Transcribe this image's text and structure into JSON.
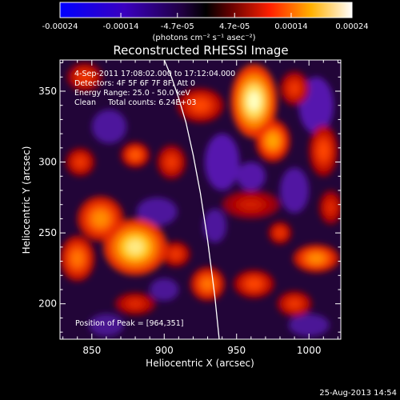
{
  "chart_data": {
    "type": "heatmap",
    "title": "Reconstructed RHESSI Image",
    "xlabel": "Heliocentric X (arcsec)",
    "ylabel": "Heliocentric Y (arcsec)",
    "xlim": [
      828,
      1022
    ],
    "ylim": [
      175,
      372
    ],
    "x_ticks": [
      850,
      900,
      950,
      1000
    ],
    "y_ticks": [
      200,
      250,
      300,
      350
    ],
    "colorbar": {
      "range": [
        -0.00024,
        0.00024
      ],
      "tick_labels": [
        "-0.00024",
        "-0.00014",
        "-4.7e-05",
        "4.7e-05",
        "0.00014",
        "0.00024"
      ],
      "units": "(photons cm⁻² s⁻¹ asec⁻²)"
    },
    "annotations": [
      "4-Sep-2011 17:08:02.000 to 17:12:04.000",
      "Detectors: 4F 5F 6F 7F 8F, Att 0",
      "Energy Range: 25.0 - 50.0 keV",
      "Clean     Total counts: 6.24E+03"
    ],
    "peak_label": "Position of Peak = [964,351]",
    "peak": [
      964,
      351
    ],
    "limb_curve": [
      [
        900,
        372
      ],
      [
        905,
        360
      ],
      [
        910,
        345
      ],
      [
        915,
        328
      ],
      [
        920,
        305
      ],
      [
        925,
        278
      ],
      [
        930,
        245
      ],
      [
        935,
        205
      ],
      [
        938,
        175
      ]
    ],
    "blobs": [
      {
        "x": 962,
        "y": 343,
        "rx": 16,
        "ry": 26,
        "v": 1.0
      },
      {
        "x": 975,
        "y": 315,
        "rx": 12,
        "ry": 15,
        "v": 0.8
      },
      {
        "x": 990,
        "y": 352,
        "rx": 10,
        "ry": 12,
        "v": 0.55
      },
      {
        "x": 1010,
        "y": 308,
        "rx": 10,
        "ry": 18,
        "v": 0.6
      },
      {
        "x": 1005,
        "y": 232,
        "rx": 16,
        "ry": 10,
        "v": 0.75
      },
      {
        "x": 980,
        "y": 250,
        "rx": 8,
        "ry": 8,
        "v": 0.55
      },
      {
        "x": 960,
        "y": 270,
        "rx": 20,
        "ry": 10,
        "v": 0.45
      },
      {
        "x": 962,
        "y": 214,
        "rx": 14,
        "ry": 10,
        "v": 0.6
      },
      {
        "x": 990,
        "y": 200,
        "rx": 12,
        "ry": 9,
        "v": 0.55
      },
      {
        "x": 930,
        "y": 214,
        "rx": 12,
        "ry": 12,
        "v": 0.7
      },
      {
        "x": 908,
        "y": 235,
        "rx": 10,
        "ry": 9,
        "v": 0.55
      },
      {
        "x": 880,
        "y": 240,
        "rx": 22,
        "ry": 20,
        "v": 0.95
      },
      {
        "x": 856,
        "y": 260,
        "rx": 16,
        "ry": 16,
        "v": 0.75
      },
      {
        "x": 840,
        "y": 232,
        "rx": 12,
        "ry": 16,
        "v": 0.7
      },
      {
        "x": 842,
        "y": 300,
        "rx": 10,
        "ry": 10,
        "v": 0.55
      },
      {
        "x": 880,
        "y": 305,
        "rx": 10,
        "ry": 9,
        "v": 0.65
      },
      {
        "x": 905,
        "y": 300,
        "rx": 10,
        "ry": 12,
        "v": 0.55
      },
      {
        "x": 925,
        "y": 340,
        "rx": 16,
        "ry": 12,
        "v": 0.6
      },
      {
        "x": 845,
        "y": 360,
        "rx": 12,
        "ry": 10,
        "v": 0.55
      },
      {
        "x": 880,
        "y": 200,
        "rx": 14,
        "ry": 8,
        "v": 0.5
      },
      {
        "x": 1015,
        "y": 268,
        "rx": 8,
        "ry": 12,
        "v": 0.5
      },
      {
        "x": 940,
        "y": 300,
        "rx": 12,
        "ry": 20,
        "v": -0.7
      },
      {
        "x": 960,
        "y": 290,
        "rx": 10,
        "ry": 10,
        "v": -0.65
      },
      {
        "x": 1005,
        "y": 340,
        "rx": 12,
        "ry": 20,
        "v": -0.7
      },
      {
        "x": 990,
        "y": 280,
        "rx": 10,
        "ry": 16,
        "v": -0.6
      },
      {
        "x": 895,
        "y": 265,
        "rx": 14,
        "ry": 10,
        "v": -0.55
      },
      {
        "x": 862,
        "y": 325,
        "rx": 12,
        "ry": 12,
        "v": -0.55
      },
      {
        "x": 900,
        "y": 210,
        "rx": 10,
        "ry": 8,
        "v": -0.5
      },
      {
        "x": 1000,
        "y": 185,
        "rx": 14,
        "ry": 8,
        "v": -0.5
      },
      {
        "x": 935,
        "y": 255,
        "rx": 8,
        "ry": 12,
        "v": -0.55
      },
      {
        "x": 860,
        "y": 185,
        "rx": 12,
        "ry": 8,
        "v": -0.45
      }
    ]
  },
  "footer": {
    "timestamp": "25-Aug-2013 14:54"
  }
}
